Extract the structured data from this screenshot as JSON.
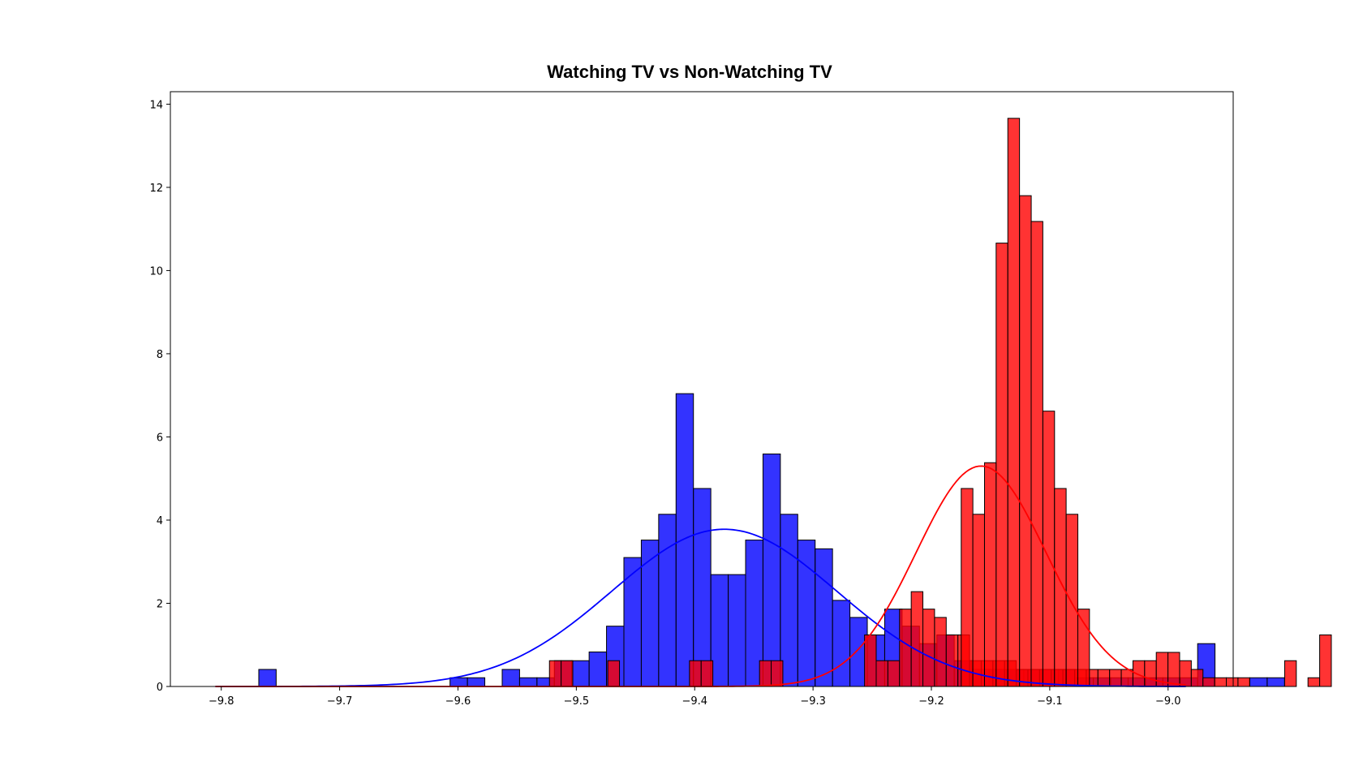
{
  "chart_data": {
    "type": "bar",
    "title": "Watching TV vs Non-Watching TV",
    "xlabel": "",
    "ylabel": "",
    "xlim": [
      -9.843,
      -8.945
    ],
    "ylim": [
      0,
      14.3
    ],
    "xticks": [
      -9.8,
      -9.7,
      -9.6,
      -9.5,
      -9.4,
      -9.3,
      -9.2,
      -9.1,
      -9.0
    ],
    "xtick_labels": [
      "−9.8",
      "−9.7",
      "−9.6",
      "−9.5",
      "−9.4",
      "−9.3",
      "−9.2",
      "−9.1",
      "−9.0"
    ],
    "yticks": [
      0,
      2,
      4,
      6,
      8,
      10,
      12,
      14
    ],
    "ytick_labels": [
      "0",
      "2",
      "4",
      "6",
      "8",
      "10",
      "12",
      "14"
    ],
    "grid": false,
    "series": [
      {
        "color": "#0000ff",
        "bin_width": 0.01469,
        "bin_edges_start": -9.7683,
        "values": [
          0.41,
          0,
          0,
          0,
          0,
          0,
          0,
          0,
          0,
          0,
          0,
          0.21,
          0.21,
          0,
          0.41,
          0.21,
          0.21,
          0.62,
          0.62,
          0.83,
          1.45,
          3.1,
          3.52,
          4.14,
          7.04,
          4.76,
          2.69,
          2.69,
          3.52,
          5.59,
          4.14,
          3.52,
          3.31,
          2.07,
          1.66,
          1.24,
          1.86,
          1.45,
          1.03,
          1.24,
          0.62,
          0.41,
          0.41,
          0.41,
          0.41,
          0.41,
          0.41,
          0.21,
          0.21,
          0.21,
          0.21,
          0.21,
          0.21,
          0.21,
          1.03,
          0,
          0,
          0.21,
          0.21
        ],
        "fit_curve": {
          "mean": -9.375,
          "peak": 3.78,
          "std": 0.095
        }
      },
      {
        "color": "#ff0000",
        "bin_width": 0.00986,
        "bin_edges_start": -9.5227,
        "values": [
          0.62,
          0.62,
          0,
          0,
          0,
          0.62,
          0,
          0,
          0,
          0,
          0,
          0,
          0.62,
          0.62,
          0,
          0,
          0,
          0,
          0.62,
          0.62,
          0,
          0,
          0,
          0,
          0,
          0,
          0,
          1.24,
          0.62,
          0.62,
          1.86,
          2.28,
          1.86,
          1.66,
          1.24,
          1.24,
          0.62,
          0.62,
          0.62,
          0.62,
          0.41,
          0.41,
          0.41,
          0.41,
          0.41,
          0.41,
          0.41,
          0.41,
          0.41,
          0.41,
          0.62,
          0.62,
          0.82,
          0.82,
          0.62,
          0.41,
          0.21,
          0.21,
          0.21,
          0.21,
          0,
          0,
          0,
          0.62,
          0,
          0.21,
          1.24
        ],
        "overlay_note": "",
        "fit_curve": {
          "mean": -9.158,
          "peak": 5.3,
          "std": 0.055
        }
      }
    ],
    "red_tall_bins": [
      {
        "x": -9.1748,
        "value": 4.76
      },
      {
        "x": -9.165,
        "value": 4.14
      },
      {
        "x": -9.1551,
        "value": 5.38
      },
      {
        "x": -9.1453,
        "value": 10.66
      },
      {
        "x": -9.1354,
        "value": 13.66
      },
      {
        "x": -9.1255,
        "value": 11.8
      },
      {
        "x": -9.1157,
        "value": 11.18
      },
      {
        "x": -9.1058,
        "value": 6.62
      },
      {
        "x": -9.096,
        "value": 4.76
      },
      {
        "x": -9.0861,
        "value": 4.14
      },
      {
        "x": -9.0763,
        "value": 1.86
      }
    ]
  }
}
